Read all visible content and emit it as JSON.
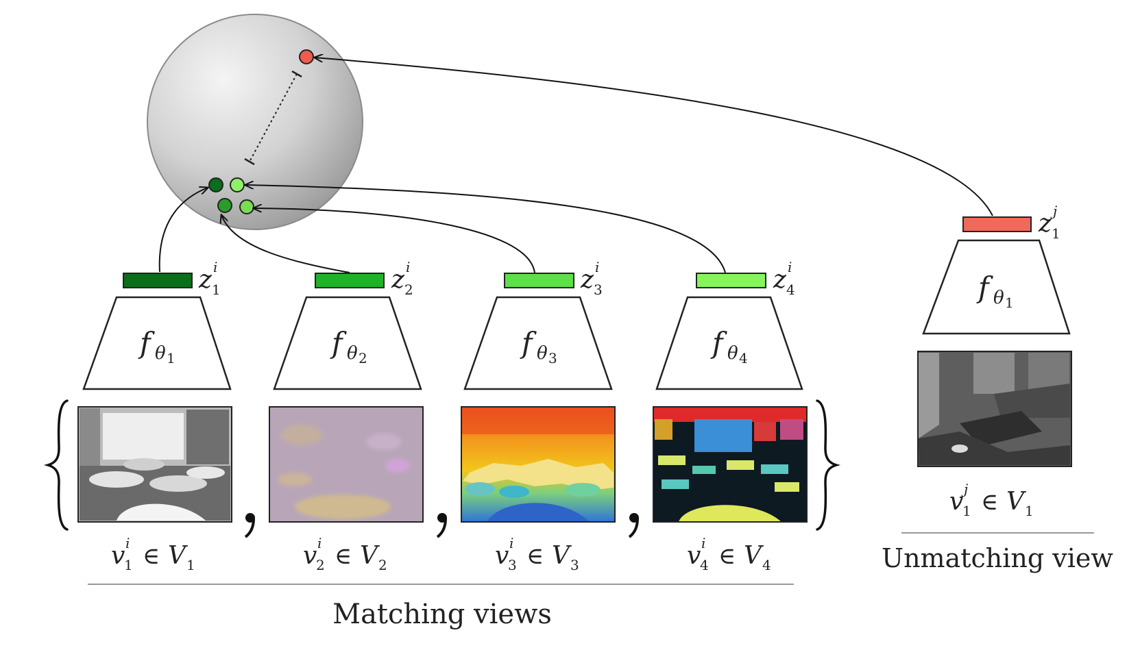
{
  "colors": {
    "z1_dark_green": "#0a6e1a",
    "z2_green": "#1fb327",
    "z3_light_green": "#5ee048",
    "z4_lime": "#86f55c",
    "unmatch_red": "#f0695a",
    "sphere_light": "#f2f2f2",
    "sphere_dark": "#9a9a9a"
  },
  "encoders": [
    {
      "f": "f",
      "sub": "θ",
      "subnum": "1",
      "z": "z",
      "zsub": "1",
      "zsup": "i",
      "v": "v",
      "vsub": "1",
      "vsup": "i",
      "V": "V",
      "Vsub": "1",
      "view": "grayscale",
      "color": "#0a6e1a"
    },
    {
      "f": "f",
      "sub": "θ",
      "subnum": "2",
      "z": "z",
      "zsub": "2",
      "zsup": "i",
      "v": "v",
      "vsub": "2",
      "vsup": "i",
      "V": "V",
      "Vsub": "2",
      "view": "surface-normals",
      "color": "#1fb327"
    },
    {
      "f": "f",
      "sub": "θ",
      "subnum": "3",
      "z": "z",
      "zsub": "3",
      "zsup": "i",
      "v": "v",
      "vsub": "3",
      "vsup": "i",
      "V": "V",
      "Vsub": "3",
      "view": "depth",
      "color": "#5ee048"
    },
    {
      "f": "f",
      "sub": "θ",
      "subnum": "4",
      "z": "z",
      "zsub": "4",
      "zsup": "i",
      "v": "v",
      "vsub": "4",
      "vsup": "i",
      "V": "V",
      "Vsub": "4",
      "view": "segmentation",
      "color": "#86f55c"
    }
  ],
  "unmatched": {
    "f": "f",
    "sub": "θ",
    "subnum": "1",
    "z": "z",
    "zsub": "1",
    "zsup": "j",
    "v": "v",
    "vsub": "1",
    "vsup": "j",
    "V": "V",
    "Vsub": "1",
    "color": "#f0695a"
  },
  "labels": {
    "matching_views": "Matching views",
    "unmatching_view": "Unmatching view",
    "element_of": "∈"
  }
}
